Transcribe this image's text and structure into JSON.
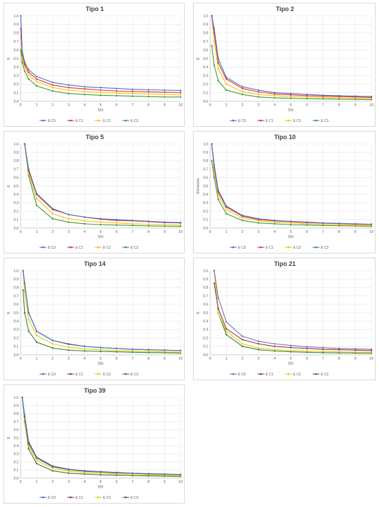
{
  "chart_data": [
    {
      "type": "line",
      "title": "Tipo 1",
      "xlabel": "Q/γ",
      "ylabel": "E",
      "xlim": [
        0,
        10
      ],
      "ylim": [
        0,
        1
      ],
      "x_ticks": [
        "0",
        "1",
        "2",
        "3",
        "4",
        "5",
        "6",
        "7",
        "8",
        "9",
        "10"
      ],
      "y_ticks": [
        "0.0",
        "0.1",
        "0.2",
        "0.3",
        "0.4",
        "0.5",
        "0.6",
        "0.7",
        "0.8",
        "0.9",
        "1.0"
      ],
      "grid": true,
      "legend": "bottom",
      "x": [
        0.01,
        0.1,
        0.25,
        0.5,
        1,
        2,
        3,
        4,
        5,
        6,
        7,
        8,
        9,
        10
      ],
      "series": [
        {
          "name": "E C0",
          "color": "#4472c4",
          "values": [
            1.0,
            0.58,
            0.46,
            0.37,
            0.29,
            0.22,
            0.19,
            0.17,
            0.16,
            0.15,
            0.14,
            0.135,
            0.13,
            0.125
          ]
        },
        {
          "name": "E C1",
          "color": "#e03131",
          "values": [
            0.85,
            0.55,
            0.43,
            0.34,
            0.26,
            0.19,
            0.16,
            0.145,
            0.13,
            0.12,
            0.115,
            0.11,
            0.105,
            0.1
          ]
        },
        {
          "name": "E C2",
          "color": "#ffc000",
          "values": [
            0.75,
            0.5,
            0.4,
            0.31,
            0.23,
            0.16,
            0.13,
            0.115,
            0.1,
            0.095,
            0.09,
            0.085,
            0.08,
            0.075
          ]
        },
        {
          "name": "E C3",
          "color": "#3a9a3a",
          "values": [
            0.6,
            0.45,
            0.35,
            0.26,
            0.18,
            0.12,
            0.09,
            0.08,
            0.07,
            0.065,
            0.06,
            0.055,
            0.05,
            0.05
          ]
        }
      ]
    },
    {
      "type": "line",
      "title": "Tipo 2",
      "xlabel": "Q/γ",
      "ylabel": "E",
      "xlim": [
        0,
        10
      ],
      "ylim": [
        0,
        1
      ],
      "x_ticks": [
        "0",
        "1",
        "2",
        "3",
        "4",
        "5",
        "6",
        "7",
        "8",
        "9",
        "10"
      ],
      "y_ticks": [
        "0.0",
        "0.1",
        "0.2",
        "0.3",
        "0.4",
        "0.5",
        "0.6",
        "0.7",
        "0.8",
        "0.9",
        "1.0"
      ],
      "grid": true,
      "legend": "bottom",
      "x": [
        0.1,
        0.25,
        0.5,
        1,
        2,
        3,
        4,
        5,
        6,
        7,
        8,
        9,
        10
      ],
      "series": [
        {
          "name": "E C0",
          "color": "#4472c4",
          "values": [
            1.0,
            0.85,
            0.5,
            0.28,
            0.17,
            0.13,
            0.1,
            0.09,
            0.08,
            0.07,
            0.065,
            0.06,
            0.055
          ]
        },
        {
          "name": "E C1",
          "color": "#e03131",
          "values": [
            1.0,
            0.8,
            0.45,
            0.26,
            0.15,
            0.11,
            0.085,
            0.075,
            0.065,
            0.06,
            0.055,
            0.05,
            0.045
          ]
        },
        {
          "name": "E C2",
          "color": "#ffc000",
          "values": [
            1.0,
            0.7,
            0.38,
            0.2,
            0.11,
            0.08,
            0.065,
            0.055,
            0.05,
            0.045,
            0.04,
            0.035,
            0.03
          ]
        },
        {
          "name": "E C3",
          "color": "#3a9a3a",
          "values": [
            0.65,
            0.42,
            0.24,
            0.13,
            0.08,
            0.05,
            0.04,
            0.035,
            0.03,
            0.028,
            0.025,
            0.022,
            0.02
          ]
        }
      ]
    },
    {
      "type": "line",
      "title": "Tipo 5",
      "xlabel": "Q/γ",
      "ylabel": "E",
      "xlim": [
        0,
        10
      ],
      "ylim": [
        0,
        1
      ],
      "x_ticks": [
        "0",
        "1",
        "2",
        "3",
        "4",
        "5",
        "6",
        "7",
        "8",
        "9",
        "10"
      ],
      "y_ticks": [
        "0.0",
        "0.1",
        "0.2",
        "0.3",
        "0.4",
        "0.5",
        "0.6",
        "0.7",
        "0.8",
        "0.9",
        "1.0"
      ],
      "grid": true,
      "legend": "bottom",
      "x": [
        0.25,
        0.5,
        1,
        2,
        3,
        4,
        5,
        6,
        7,
        8,
        9,
        10
      ],
      "series": [
        {
          "name": "E C0",
          "color": "#4472c4",
          "values": [
            1.0,
            0.7,
            0.41,
            0.23,
            0.16,
            0.13,
            0.11,
            0.1,
            0.09,
            0.08,
            0.07,
            0.065
          ]
        },
        {
          "name": "E C1",
          "color": "#e03131",
          "values": [
            1.0,
            0.68,
            0.4,
            0.22,
            0.16,
            0.13,
            0.105,
            0.09,
            0.085,
            0.075,
            0.065,
            0.06
          ]
        },
        {
          "name": "E C2",
          "color": "#ffc000",
          "values": [
            1.0,
            0.65,
            0.35,
            0.17,
            0.11,
            0.085,
            0.07,
            0.06,
            0.05,
            0.045,
            0.04,
            0.035
          ]
        },
        {
          "name": "E C3",
          "color": "#3a9a3a",
          "values": [
            1.0,
            0.62,
            0.27,
            0.11,
            0.07,
            0.05,
            0.04,
            0.035,
            0.03,
            0.025,
            0.022,
            0.02
          ]
        }
      ]
    },
    {
      "type": "line",
      "title": "Tipo 10",
      "xlabel": "Q/γ",
      "ylabel": "Eficiencia",
      "xlim": [
        0,
        10
      ],
      "ylim": [
        0,
        1
      ],
      "x_ticks": [
        "0",
        "1",
        "2",
        "3",
        "4",
        "5",
        "6",
        "7",
        "8",
        "9",
        "10"
      ],
      "y_ticks": [
        "0.0",
        "0.1",
        "0.2",
        "0.3",
        "0.4",
        "0.5",
        "0.6",
        "0.7",
        "0.8",
        "0.9",
        "1.0"
      ],
      "grid": true,
      "legend": "bottom",
      "x": [
        0.1,
        0.25,
        0.5,
        1,
        2,
        3,
        4,
        5,
        6,
        7,
        8,
        9,
        10
      ],
      "series": [
        {
          "name": "E C0",
          "color": "#4472c4",
          "values": [
            1.0,
            0.75,
            0.45,
            0.26,
            0.15,
            0.11,
            0.09,
            0.08,
            0.07,
            0.06,
            0.055,
            0.05,
            0.045
          ]
        },
        {
          "name": "E C1",
          "color": "#e03131",
          "values": [
            1.0,
            0.72,
            0.43,
            0.25,
            0.14,
            0.1,
            0.085,
            0.075,
            0.065,
            0.058,
            0.052,
            0.047,
            0.042
          ]
        },
        {
          "name": "E C2",
          "color": "#ffc000",
          "values": [
            1.0,
            0.68,
            0.4,
            0.22,
            0.12,
            0.085,
            0.07,
            0.06,
            0.05,
            0.045,
            0.04,
            0.035,
            0.03
          ]
        },
        {
          "name": "E C3",
          "color": "#3a9a3a",
          "values": [
            0.8,
            0.6,
            0.34,
            0.17,
            0.09,
            0.06,
            0.05,
            0.04,
            0.035,
            0.03,
            0.027,
            0.024,
            0.02
          ]
        }
      ]
    },
    {
      "type": "line",
      "title": "Tipo 14",
      "xlabel": "Q/γ",
      "ylabel": "E",
      "xlim": [
        0,
        10
      ],
      "ylim": [
        0,
        1
      ],
      "x_ticks": [
        "0",
        "1",
        "2",
        "3",
        "4",
        "5",
        "6",
        "7",
        "8",
        "9",
        "10"
      ],
      "y_ticks": [
        "0.0",
        "0.1",
        "0.2",
        "0.3",
        "0.4",
        "0.5",
        "0.6",
        "0.7",
        "0.8",
        "0.9",
        "1.0"
      ],
      "grid": true,
      "legend": "bottom",
      "x": [
        0.15,
        0.25,
        0.5,
        1,
        2,
        3,
        4,
        5,
        6,
        7,
        8,
        9,
        10
      ],
      "series": [
        {
          "name": "E C0",
          "color": "#4472c4",
          "values": [
            1.0,
            0.85,
            0.5,
            0.28,
            0.17,
            0.13,
            0.1,
            0.085,
            0.075,
            0.065,
            0.06,
            0.055,
            0.05
          ]
        },
        {
          "name": "E C1",
          "color": "#8b3a3a",
          "values": [
            1.0,
            0.85,
            0.5,
            0.28,
            0.17,
            0.125,
            0.1,
            0.085,
            0.075,
            0.065,
            0.06,
            0.055,
            0.05
          ]
        },
        {
          "name": "E C2",
          "color": "#e0d000",
          "values": [
            1.0,
            0.75,
            0.42,
            0.23,
            0.13,
            0.09,
            0.07,
            0.06,
            0.05,
            0.045,
            0.04,
            0.035,
            0.03
          ]
        },
        {
          "name": "E C3",
          "color": "#3a7a3a",
          "values": [
            0.77,
            0.5,
            0.28,
            0.15,
            0.08,
            0.055,
            0.045,
            0.04,
            0.035,
            0.03,
            0.027,
            0.024,
            0.02
          ]
        }
      ]
    },
    {
      "type": "line",
      "title": "Tipo 21",
      "xlabel": "Q/γ",
      "ylabel": "E",
      "xlim": [
        0,
        10
      ],
      "ylim": [
        0,
        1
      ],
      "x_ticks": [
        "0",
        "1",
        "2",
        "3",
        "4",
        "5",
        "6",
        "7",
        "8",
        "9",
        "10"
      ],
      "y_ticks": [
        "0.0",
        "0.1",
        "0.2",
        "0.3",
        "0.4",
        "0.5",
        "0.6",
        "0.7",
        "0.8",
        "0.9",
        "1.0"
      ],
      "grid": true,
      "legend": "bottom",
      "x": [
        0.25,
        0.5,
        1,
        2,
        3,
        4,
        5,
        6,
        7,
        8,
        9,
        10
      ],
      "series": [
        {
          "name": "E C0",
          "color": "#7b68c8",
          "values": [
            1.0,
            0.68,
            0.39,
            0.22,
            0.16,
            0.13,
            0.11,
            0.095,
            0.085,
            0.075,
            0.07,
            0.065
          ]
        },
        {
          "name": "E C1",
          "color": "#8b3a3a",
          "values": [
            0.85,
            0.55,
            0.31,
            0.18,
            0.13,
            0.1,
            0.085,
            0.075,
            0.065,
            0.06,
            0.055,
            0.05
          ]
        },
        {
          "name": "E C2",
          "color": "#e0d000",
          "values": [
            1.0,
            0.5,
            0.28,
            0.13,
            0.08,
            0.06,
            0.05,
            0.045,
            0.04,
            0.035,
            0.032,
            0.03
          ]
        },
        {
          "name": "E C3",
          "color": "#3a7a3a",
          "values": [
            1.0,
            0.5,
            0.24,
            0.1,
            0.06,
            0.045,
            0.035,
            0.03,
            0.025,
            0.022,
            0.02,
            0.018
          ]
        }
      ]
    },
    {
      "type": "line",
      "title": "Tipo 39",
      "xlabel": "Q/γ",
      "ylabel": "E",
      "xlim": [
        0,
        10
      ],
      "ylim": [
        0,
        1
      ],
      "x_ticks": [
        "0",
        "1",
        "2",
        "3",
        "4",
        "5",
        "6",
        "7",
        "8",
        "9",
        "10"
      ],
      "y_ticks": [
        "0.0",
        "0.1",
        "0.2",
        "0.3",
        "0.4",
        "0.5",
        "0.6",
        "0.7",
        "0.8",
        "0.9",
        "1.0"
      ],
      "grid": true,
      "legend": "bottom",
      "x": [
        0.1,
        0.25,
        0.5,
        1,
        2,
        3,
        4,
        5,
        6,
        7,
        8,
        9,
        10
      ],
      "series": [
        {
          "name": "E C0",
          "color": "#4472c4",
          "values": [
            1.0,
            0.78,
            0.45,
            0.26,
            0.15,
            0.11,
            0.09,
            0.08,
            0.07,
            0.06,
            0.055,
            0.05,
            0.045
          ]
        },
        {
          "name": "E C1",
          "color": "#8b3a3a",
          "values": [
            1.0,
            0.76,
            0.43,
            0.25,
            0.14,
            0.105,
            0.085,
            0.075,
            0.065,
            0.058,
            0.052,
            0.047,
            0.042
          ]
        },
        {
          "name": "E C2",
          "color": "#e0d000",
          "values": [
            1.0,
            0.72,
            0.4,
            0.22,
            0.12,
            0.085,
            0.07,
            0.06,
            0.05,
            0.045,
            0.04,
            0.035,
            0.03
          ]
        },
        {
          "name": "E C3",
          "color": "#3a7a3a",
          "values": [
            1.0,
            0.7,
            0.36,
            0.18,
            0.09,
            0.06,
            0.05,
            0.04,
            0.035,
            0.03,
            0.027,
            0.024,
            0.02
          ]
        }
      ]
    }
  ]
}
